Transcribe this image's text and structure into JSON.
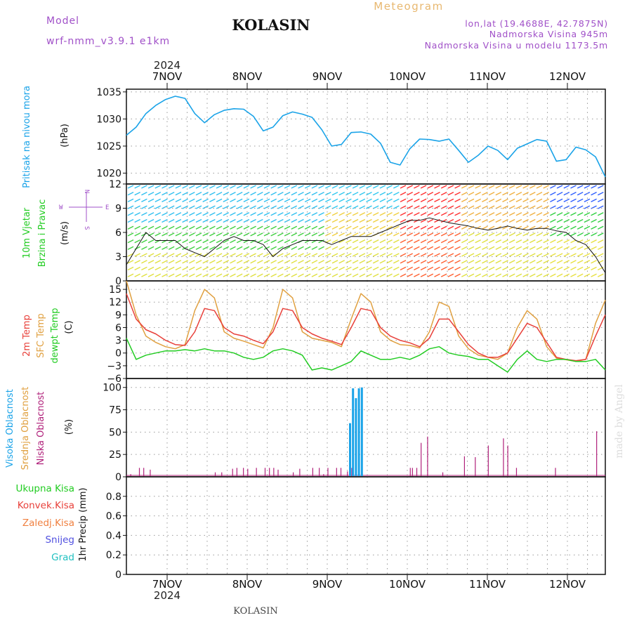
{
  "header": {
    "model_label": "Model",
    "model_name": "wrf-nmm_v3.9.1  e1km",
    "station": "KOLASIN",
    "title": "Meteogram",
    "lonlat": "lon,lat (19.4688E, 42.7875N)",
    "elevation": "Nadmorska Visina 945m",
    "model_elevation": "Nadmorska Visina u modelu 1173.5m",
    "year": "2024",
    "footer_station": "KOLASIN",
    "watermark": "made by Angel"
  },
  "colors": {
    "pressure": "#1aa3e8",
    "t2m": "#e8403a",
    "sfc": "#e0a040",
    "dew": "#22cc22",
    "high_cloud": "#1aa3e8",
    "low_cloud": "#b0207a"
  },
  "chart_data": [
    {
      "type": "line",
      "panel": "pressure",
      "ylabel_lines": [
        "Pritisak na nivou mora",
        "(hPa)"
      ],
      "x_categories": [
        "7NOV",
        "8NOV",
        "9NOV",
        "10NOV",
        "11NOV",
        "12NOV"
      ],
      "ylim": [
        1018,
        1035.5
      ],
      "yticks": [
        1020,
        1025,
        1030,
        1035
      ],
      "grid": true,
      "series": [
        {
          "x": [
            0,
            3,
            6,
            9,
            12,
            15,
            18,
            21,
            24,
            27,
            30,
            33,
            36,
            39,
            42,
            45,
            48,
            51,
            54,
            57,
            60,
            63,
            66,
            69,
            72,
            75,
            78,
            81,
            84,
            87,
            90,
            93,
            96,
            99,
            102,
            105,
            108,
            111,
            114,
            117,
            120,
            123,
            126,
            129,
            132,
            135,
            138,
            141,
            144,
            147
          ],
          "y": [
            1027,
            1028.5,
            1031,
            1032.5,
            1033.6,
            1034.2,
            1033.8,
            1031,
            1029.3,
            1030.8,
            1031.6,
            1031.9,
            1031.8,
            1030.5,
            1027.8,
            1028.5,
            1030.6,
            1031.3,
            1030.9,
            1030.3,
            1028,
            1025,
            1025.3,
            1027.5,
            1027.6,
            1027.2,
            1025.5,
            1022,
            1021.5,
            1024.5,
            1026.3,
            1026.2,
            1025.9,
            1026.3,
            1024.2,
            1022,
            1023.3,
            1025,
            1024.2,
            1022.5,
            1024.6,
            1025.4,
            1026.2,
            1025.9,
            1022.2,
            1022.5,
            1024.8,
            1024.3,
            1023,
            1019.3
          ]
        }
      ]
    },
    {
      "type": "line",
      "panel": "wind",
      "ylabel_lines": [
        "10m Vjetar",
        "Brzina i Pravac",
        "(m/s)"
      ],
      "compass": {
        "n": "N",
        "s": "S",
        "w": "W",
        "e": "E"
      },
      "ylim": [
        0,
        12
      ],
      "yticks": [
        0,
        3,
        6,
        9,
        12
      ],
      "grid": true,
      "series": [
        {
          "name": "speed",
          "x": [
            0,
            3,
            6,
            9,
            12,
            15,
            18,
            21,
            24,
            27,
            30,
            33,
            36,
            39,
            42,
            45,
            48,
            51,
            54,
            57,
            60,
            63,
            66,
            69,
            72,
            75,
            78,
            81,
            84,
            87,
            90,
            93,
            96,
            99,
            102,
            105,
            108,
            111,
            114,
            117,
            120,
            123,
            126,
            129,
            132,
            135,
            138,
            141,
            144,
            147
          ],
          "y": [
            2,
            4,
            6,
            5,
            5,
            5,
            4,
            3.5,
            3,
            4,
            5,
            5.5,
            5,
            5,
            4.5,
            3,
            4,
            4.5,
            5,
            5,
            5,
            4.5,
            5,
            5.5,
            5.5,
            5.5,
            6,
            6.5,
            7,
            7.5,
            7.5,
            7.8,
            7.5,
            7.2,
            7,
            6.8,
            6.5,
            6.3,
            6.5,
            6.8,
            6.5,
            6.3,
            6.5,
            6.5,
            6.2,
            6,
            5,
            4.5,
            3,
            1
          ]
        }
      ]
    },
    {
      "type": "line",
      "panel": "temperature",
      "ylabel_lines": [
        "2m Temp",
        "SFC Temp",
        "dewpt Temp",
        "(C)"
      ],
      "ylim": [
        -6,
        17
      ],
      "yticks": [
        -6,
        -3,
        0,
        3,
        6,
        9,
        12,
        15
      ],
      "grid": true,
      "series": [
        {
          "name": "2m Temp",
          "x": [
            0,
            3,
            6,
            9,
            12,
            15,
            18,
            21,
            24,
            27,
            30,
            33,
            36,
            39,
            42,
            45,
            48,
            51,
            54,
            57,
            60,
            63,
            66,
            69,
            72,
            75,
            78,
            81,
            84,
            87,
            90,
            93,
            96,
            99,
            102,
            105,
            108,
            111,
            114,
            117,
            120,
            123,
            126,
            129,
            132,
            135,
            138,
            141,
            144,
            147
          ],
          "y": [
            14,
            8,
            5.5,
            4.5,
            3,
            2,
            1.8,
            5,
            10.5,
            10,
            6,
            4.5,
            4,
            3,
            2.2,
            5,
            10.5,
            10,
            6,
            4.5,
            3.5,
            2.8,
            2,
            6,
            10.5,
            10,
            6,
            4,
            3,
            2.4,
            1.5,
            3.5,
            8,
            8,
            5,
            2,
            0,
            -1,
            -1,
            0,
            3.5,
            7,
            6,
            2.5,
            -1,
            -1.5,
            -1.8,
            -1.5,
            4,
            9
          ]
        },
        {
          "name": "SFC Temp",
          "x": [
            0,
            3,
            6,
            9,
            12,
            15,
            18,
            21,
            24,
            27,
            30,
            33,
            36,
            39,
            42,
            45,
            48,
            51,
            54,
            57,
            60,
            63,
            66,
            69,
            72,
            75,
            78,
            81,
            84,
            87,
            90,
            93,
            96,
            99,
            102,
            105,
            108,
            111,
            114,
            117,
            120,
            123,
            126,
            129,
            132,
            135,
            138,
            141,
            144,
            147
          ],
          "y": [
            17,
            9,
            4,
            2.5,
            1.5,
            1,
            2,
            10,
            15,
            13,
            5,
            3.5,
            2.8,
            2,
            1.2,
            6,
            15,
            13,
            5,
            3.5,
            3,
            2.5,
            1.5,
            8,
            14,
            12,
            5,
            3,
            2,
            1.8,
            1.2,
            5,
            12,
            11,
            4,
            1,
            -0.5,
            -1,
            -1.5,
            0,
            6,
            10,
            8,
            1.5,
            -1.2,
            -1.6,
            -2,
            -1.5,
            7,
            12.5
          ]
        },
        {
          "name": "dewpt Temp",
          "x": [
            0,
            3,
            6,
            9,
            12,
            15,
            18,
            21,
            24,
            27,
            30,
            33,
            36,
            39,
            42,
            45,
            48,
            51,
            54,
            57,
            60,
            63,
            66,
            69,
            72,
            75,
            78,
            81,
            84,
            87,
            90,
            93,
            96,
            99,
            102,
            105,
            108,
            111,
            114,
            117,
            120,
            123,
            126,
            129,
            132,
            135,
            138,
            141,
            144,
            147
          ],
          "y": [
            3.5,
            -1.5,
            -0.5,
            0,
            0.5,
            0.5,
            0.8,
            0.5,
            1,
            0.5,
            0.5,
            0,
            -1,
            -1.5,
            -1,
            0.5,
            1,
            0.5,
            -0.5,
            -4,
            -3.5,
            -4,
            -3,
            -2,
            0.5,
            -0.5,
            -1.5,
            -1.5,
            -1,
            -1.5,
            -0.5,
            1,
            1.5,
            0,
            -0.5,
            -0.8,
            -1.5,
            -1.5,
            -3,
            -4.5,
            -1.5,
            0.5,
            -1.5,
            -2,
            -1.5,
            -1.5,
            -2,
            -2,
            -1.5,
            -4
          ]
        }
      ]
    },
    {
      "type": "bar",
      "panel": "clouds",
      "ylabel_lines": [
        "Visoka Oblacnost",
        "Srednja Oblacnost",
        "Niska Oblacnost",
        "(%)"
      ],
      "ylim": [
        0,
        110
      ],
      "yticks": [
        0,
        25,
        50,
        75,
        100
      ],
      "grid": true,
      "series": [
        {
          "name": "Visoka Oblacnost",
          "x": [
            69,
            70,
            71,
            72,
            73
          ],
          "values": [
            60,
            99,
            88,
            99,
            100
          ]
        },
        {
          "name": "Niska Oblacnost",
          "x": [
            2,
            6,
            8,
            11,
            41,
            44,
            49,
            51,
            54,
            56,
            60,
            64,
            66,
            68,
            70,
            77,
            80,
            86,
            89,
            91,
            93,
            97,
            99,
            102,
            104,
            131,
            132,
            134,
            136,
            139,
            146,
            156,
            161,
            167,
            174,
            176,
            180,
            198,
            217
          ],
          "values": [
            3,
            10,
            10,
            8,
            5,
            5,
            9,
            10,
            10,
            9,
            10,
            10,
            10,
            10,
            8,
            5,
            9,
            10,
            10,
            3,
            10,
            10,
            10,
            6,
            10,
            10,
            10,
            10,
            38,
            45,
            5,
            23,
            22,
            35,
            43,
            35,
            10,
            10,
            51
          ]
        }
      ]
    },
    {
      "type": "bar",
      "panel": "precip",
      "ylabel_lines": [
        "1hr Precip (mm)"
      ],
      "legend": [
        "Ukupna Kisa",
        "Konvek.Kisa",
        "Zaledj.Kisa",
        "Snijeg",
        "Grad"
      ],
      "ylim": [
        0,
        1
      ],
      "yticks": [
        0,
        0.2,
        0.4,
        0.6,
        0.8
      ],
      "grid": true,
      "series": []
    }
  ]
}
